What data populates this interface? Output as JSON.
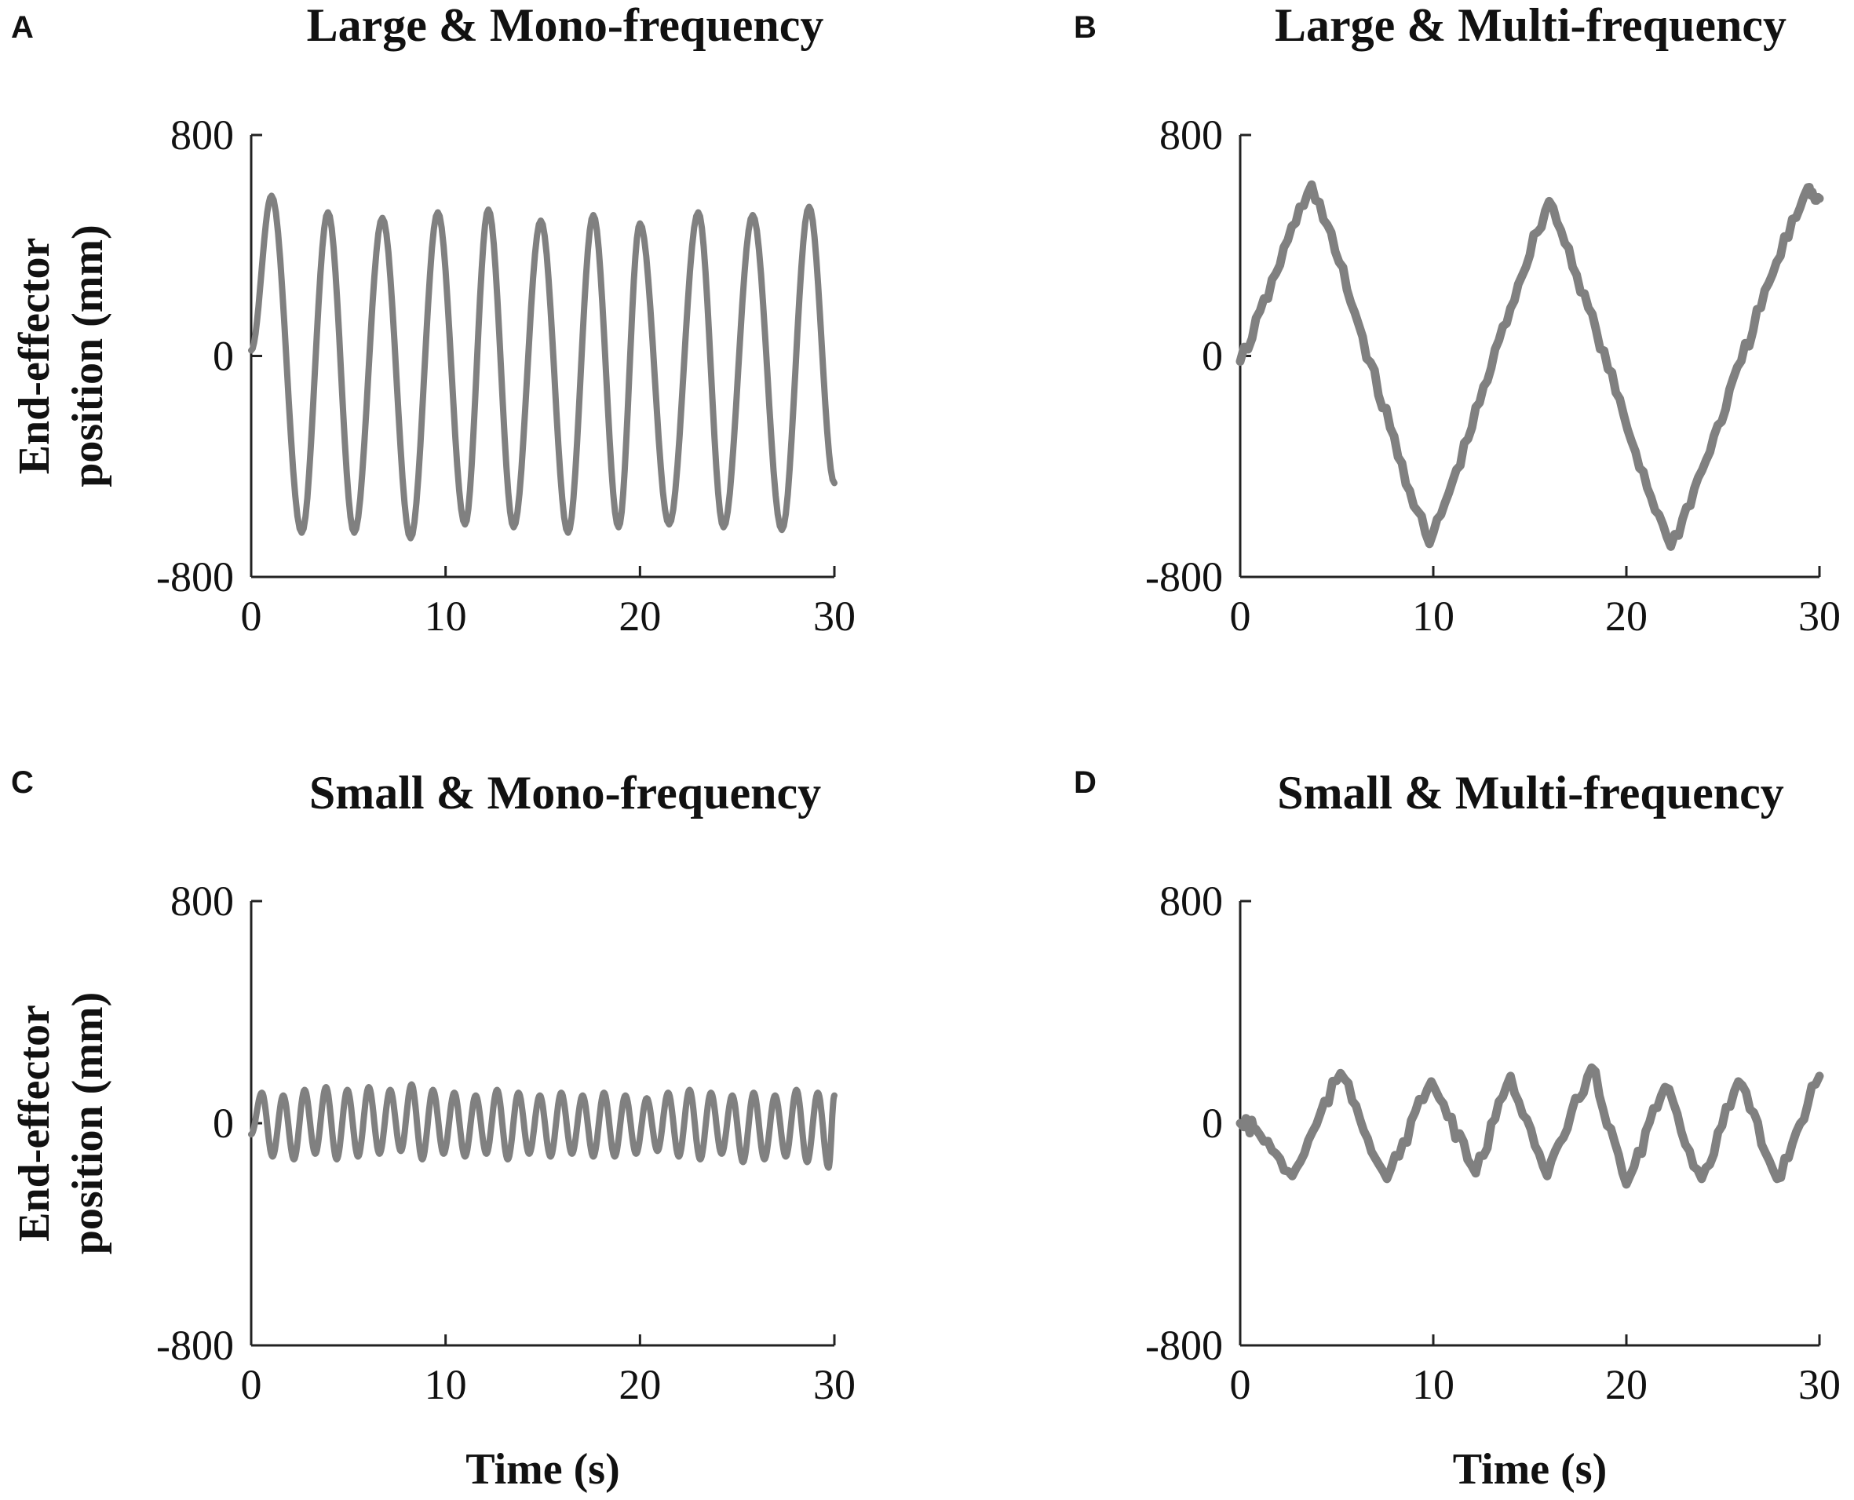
{
  "chart_data": [
    {
      "id": "A",
      "type": "line",
      "panel_label": "A",
      "title": "Large & Mono-frequency",
      "xlabel": "",
      "ylabel": "End-effector position (mm)",
      "ylabel_lines": [
        "End-effector",
        "position (mm)"
      ],
      "xlim": [
        0,
        30
      ],
      "ylim": [
        -800,
        800
      ],
      "xticks": [
        0,
        10,
        20,
        30
      ],
      "yticks": [
        -800,
        0,
        800
      ],
      "grid": false,
      "color": "#808080",
      "series": [
        {
          "x": [
            0,
            1.05,
            2.6,
            3.95,
            5.3,
            6.75,
            8.2,
            9.6,
            11.0,
            12.2,
            13.5,
            14.9,
            16.3,
            17.6,
            18.9,
            20.0,
            21.5,
            23.0,
            24.3,
            25.8,
            27.3,
            28.7,
            30
          ],
          "y": [
            20,
            580,
            -640,
            520,
            -640,
            500,
            -660,
            520,
            -610,
            530,
            -620,
            490,
            -640,
            510,
            -620,
            480,
            -610,
            520,
            -620,
            510,
            -630,
            540,
            -460
          ],
          "style": "wave"
        }
      ]
    },
    {
      "id": "B",
      "type": "line",
      "panel_label": "B",
      "title": "Large & Multi-frequency",
      "xlabel": "",
      "ylabel": "",
      "ylabel_lines": [],
      "xlim": [
        0,
        30
      ],
      "ylim": [
        -800,
        800
      ],
      "xticks": [
        0,
        10,
        20,
        30
      ],
      "yticks": [
        -800,
        0,
        800
      ],
      "grid": false,
      "color": "#808080",
      "series": [
        {
          "x": [
            0,
            3.7,
            9.8,
            16.0,
            22.3,
            29.4,
            30
          ],
          "y": [
            -20,
            620,
            -680,
            560,
            -690,
            610,
            570
          ],
          "style": "jitter"
        }
      ]
    },
    {
      "id": "C",
      "type": "line",
      "panel_label": "C",
      "title": "Small & Mono-frequency",
      "xlabel": "Time (s)",
      "ylabel": "End-effector position (mm)",
      "ylabel_lines": [
        "End-effector",
        "position (mm)"
      ],
      "xlim": [
        0,
        30
      ],
      "ylim": [
        -800,
        800
      ],
      "xticks": [
        0,
        10,
        20,
        30
      ],
      "yticks": [
        -800,
        0,
        800
      ],
      "grid": false,
      "color": "#808080",
      "series": [
        {
          "x": [
            0,
            0.55,
            1.1,
            1.65,
            2.2,
            2.75,
            3.3,
            3.85,
            4.4,
            4.95,
            5.5,
            6.05,
            6.6,
            7.15,
            7.7,
            8.25,
            8.8,
            9.35,
            9.9,
            10.45,
            11.0,
            11.55,
            12.1,
            12.65,
            13.2,
            13.75,
            14.3,
            14.85,
            15.4,
            15.95,
            16.5,
            17.05,
            17.6,
            18.15,
            18.7,
            19.25,
            19.8,
            20.35,
            20.9,
            21.45,
            22.0,
            22.55,
            23.1,
            23.65,
            24.2,
            24.75,
            25.3,
            25.85,
            26.4,
            26.95,
            27.5,
            28.05,
            28.6,
            29.15,
            29.7,
            30
          ],
          "y": [
            -40,
            110,
            -120,
            100,
            -130,
            120,
            -110,
            130,
            -130,
            120,
            -120,
            130,
            -110,
            120,
            -100,
            140,
            -130,
            120,
            -110,
            110,
            -120,
            100,
            -110,
            120,
            -130,
            110,
            -110,
            100,
            -120,
            110,
            -110,
            100,
            -120,
            110,
            -120,
            100,
            -110,
            90,
            -100,
            110,
            -120,
            120,
            -130,
            110,
            -110,
            100,
            -140,
            110,
            -130,
            100,
            -120,
            120,
            -140,
            110,
            -160,
            100
          ],
          "style": "wave"
        }
      ]
    },
    {
      "id": "D",
      "type": "line",
      "panel_label": "D",
      "title": "Small & Multi-frequency",
      "xlabel": "Time (s)",
      "ylabel": "",
      "ylabel_lines": [],
      "xlim": [
        0,
        30
      ],
      "ylim": [
        -800,
        800
      ],
      "xticks": [
        0,
        10,
        20,
        30
      ],
      "yticks": [
        -800,
        0,
        800
      ],
      "grid": false,
      "color": "#808080",
      "series": [
        {
          "x": [
            0,
            0.8,
            2.7,
            5.2,
            7.6,
            9.9,
            12.2,
            14.0,
            15.9,
            18.2,
            20.0,
            22.0,
            23.9,
            25.8,
            27.8,
            30
          ],
          "y": [
            0,
            -20,
            -190,
            180,
            -200,
            150,
            -180,
            170,
            -190,
            200,
            -220,
            130,
            -200,
            150,
            -200,
            170
          ],
          "style": "jitter"
        }
      ]
    }
  ]
}
